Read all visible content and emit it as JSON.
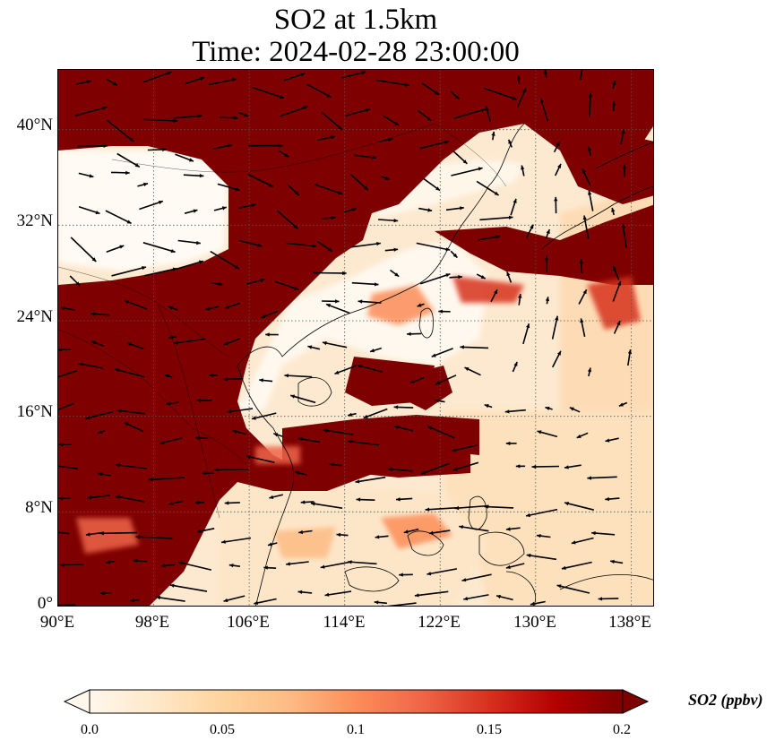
{
  "title": {
    "line1": "SO2 at 1.5km",
    "line2": "Time: 2024-02-28 23:00:00"
  },
  "map": {
    "extent": {
      "lon_min": 90,
      "lon_max": 140,
      "lat_min": 0,
      "lat_max": 45
    },
    "lat_ticks": [
      {
        "value": 0,
        "label": "0°"
      },
      {
        "value": 8,
        "label": "8°N"
      },
      {
        "value": 16,
        "label": "16°N"
      },
      {
        "value": 24,
        "label": "24°N"
      },
      {
        "value": 32,
        "label": "32°N"
      },
      {
        "value": 40,
        "label": "40°N"
      }
    ],
    "lon_ticks": [
      {
        "value": 90,
        "label": "90°E"
      },
      {
        "value": 98,
        "label": "98°E"
      },
      {
        "value": 106,
        "label": "106°E"
      },
      {
        "value": 114,
        "label": "114°E"
      },
      {
        "value": 122,
        "label": "122°E"
      },
      {
        "value": 130,
        "label": "130°E"
      },
      {
        "value": 138,
        "label": "138°E"
      }
    ],
    "gridlines": true,
    "wind_vectors": true
  },
  "colorbar": {
    "label": "SO2 (ppbv)",
    "ticks": [
      "0.0",
      "0.05",
      "0.1",
      "0.15",
      "0.2"
    ],
    "range": [
      0,
      0.2
    ],
    "extend": "both",
    "colormap": "OrRd",
    "colors": [
      "#fff7ec",
      "#fee8c8",
      "#fdd49e",
      "#fdbb84",
      "#fc8d59",
      "#ef6548",
      "#d7301f",
      "#b30000",
      "#7f0000"
    ]
  }
}
